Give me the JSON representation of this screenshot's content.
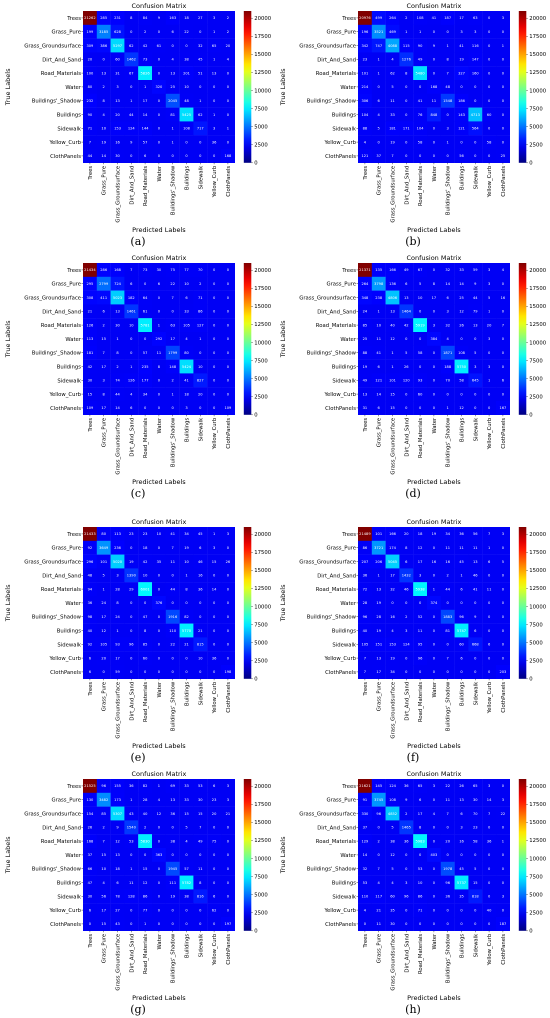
{
  "figure": {
    "colormap": "jet",
    "colorbar_ticks": [
      "0",
      "2500",
      "5000",
      "7500",
      "10000",
      "12500",
      "15000",
      "17500",
      "20000"
    ]
  },
  "chart_data": [
    {
      "panel": "(a)",
      "type": "heatmap",
      "title": "Confusion Matrix",
      "xlabel": "Predicted Labels",
      "ylabel": "True Labels",
      "labels": [
        "Trees",
        "Grass_Pure",
        "Grass_Groundsurface",
        "Dirt_And_Sand",
        "Road_Materials",
        "Water",
        "Buildings'_Shadow",
        "Buildings",
        "Sidewalk",
        "Yellow_Curb",
        "ClothPanels"
      ],
      "vmin": 0,
      "vmax": 21000,
      "matrix": [
        [
          21262,
          285,
          231,
          8,
          84,
          9,
          163,
          18,
          27,
          3,
          2
        ],
        [
          199,
          3185,
          628,
          0,
          2,
          0,
          6,
          22,
          0,
          1,
          2
        ],
        [
          309,
          386,
          5297,
          62,
          42,
          61,
          0,
          0,
          32,
          65,
          20
        ],
        [
          20,
          0,
          60,
          1462,
          73,
          0,
          4,
          38,
          45,
          1,
          4
        ],
        [
          100,
          13,
          31,
          67,
          5826,
          0,
          13,
          201,
          51,
          13,
          0
        ],
        [
          80,
          2,
          3,
          0,
          1,
          320,
          25,
          10,
          0,
          0,
          0
        ],
        [
          232,
          8,
          13,
          1,
          17,
          0,
          2045,
          48,
          1,
          0,
          0
        ],
        [
          90,
          4,
          20,
          44,
          14,
          0,
          81,
          5425,
          62,
          1,
          0
        ],
        [
          71,
          10,
          153,
          124,
          144,
          0,
          1,
          108,
          717,
          3,
          1
        ],
        [
          7,
          19,
          16,
          9,
          57,
          0,
          1,
          0,
          0,
          36,
          0
        ],
        [
          44,
          14,
          30,
          0,
          6,
          0,
          0,
          0,
          0,
          0,
          168
        ]
      ]
    },
    {
      "panel": "(b)",
      "type": "heatmap",
      "title": "Confusion Matrix",
      "xlabel": "Predicted Labels",
      "ylabel": "True Labels",
      "labels": [
        "Trees",
        "Grass_Pure",
        "Grass_Groundsurface",
        "Dirt_And_Sand",
        "Road_Materials",
        "Water",
        "Buildings'_Shadow",
        "Buildings",
        "Sidewalk",
        "Yellow_Curb",
        "ClothPanels"
      ],
      "vmin": 0,
      "vmax": 21000,
      "matrix": [
        [
          20976,
          499,
          264,
          2,
          108,
          41,
          187,
          17,
          63,
          0,
          3
        ],
        [
          196,
          3521,
          469,
          1,
          1,
          0,
          0,
          3,
          3,
          0,
          0
        ],
        [
          342,
          747,
          4088,
          115,
          90,
          9,
          1,
          41,
          116,
          0,
          1
        ],
        [
          23,
          1,
          4,
          1276,
          49,
          0,
          8,
          19,
          147,
          0,
          0
        ],
        [
          101,
          1,
          62,
          8,
          5480,
          0,
          7,
          327,
          160,
          0,
          0
        ],
        [
          214,
          0,
          5,
          0,
          0,
          168,
          48,
          0,
          0,
          0,
          0
        ],
        [
          306,
          6,
          11,
          0,
          41,
          11,
          1548,
          186,
          0,
          0,
          0
        ],
        [
          104,
          4,
          33,
          0,
          76,
          848,
          0,
          143,
          4713,
          60,
          0
        ],
        [
          88,
          5,
          181,
          171,
          104,
          0,
          3,
          121,
          564,
          0,
          0
        ],
        [
          4,
          0,
          19,
          0,
          58,
          0,
          1,
          0,
          0,
          58,
          0
        ],
        [
          121,
          37,
          7,
          0,
          0,
          0,
          0,
          56,
          0,
          0,
          25
        ]
      ]
    },
    {
      "panel": "(c)",
      "type": "heatmap",
      "title": "Confusion Matrix",
      "xlabel": "Predicted Labels",
      "ylabel": "True Labels",
      "labels": [
        "Trees",
        "Grass_Pure",
        "Grass_Groundsurface",
        "Dirt_And_Sand",
        "Road_Materials",
        "Water",
        "Buildings'_Shadow",
        "Buildings",
        "Sidewalk",
        "Yellow_Curb",
        "ClothPanels"
      ],
      "vmin": 0,
      "vmax": 21000,
      "matrix": [
        [
          21434,
          286,
          168,
          7,
          73,
          30,
          75,
          77,
          70,
          0,
          0
        ],
        [
          295,
          2799,
          724,
          6,
          0,
          6,
          22,
          10,
          2,
          0,
          0
        ],
        [
          308,
          411,
          5023,
          182,
          64,
          0,
          7,
          6,
          71,
          0,
          0
        ],
        [
          21,
          6,
          13,
          1461,
          61,
          0,
          0,
          33,
          86,
          0,
          0
        ],
        [
          126,
          2,
          30,
          10,
          5781,
          1,
          63,
          105,
          127,
          0,
          0
        ],
        [
          113,
          15,
          1,
          0,
          0,
          292,
          17,
          4,
          1,
          0,
          0
        ],
        [
          181,
          7,
          8,
          0,
          57,
          11,
          1799,
          80,
          0,
          0,
          0
        ],
        [
          42,
          17,
          2,
          1,
          235,
          8,
          148,
          5424,
          10,
          0,
          0
        ],
        [
          30,
          3,
          74,
          126,
          177,
          0,
          2,
          41,
          827,
          0,
          0
        ],
        [
          15,
          8,
          44,
          4,
          34,
          0,
          1,
          18,
          20,
          0,
          0
        ],
        [
          109,
          17,
          14,
          6,
          0,
          0,
          0,
          3,
          0,
          0,
          109
        ]
      ]
    },
    {
      "panel": "(d)",
      "type": "heatmap",
      "title": "Confusion Matrix",
      "xlabel": "Predicted Labels",
      "ylabel": "True Labels",
      "labels": [
        "Trees",
        "Grass_Pure",
        "Grass_Groundsurface",
        "Dirt_And_Sand",
        "Road_Materials",
        "Water",
        "Buildings'_Shadow",
        "Buildings",
        "Sidewalk",
        "Yellow_Curb",
        "ClothPanels"
      ],
      "vmin": 0,
      "vmax": 21000,
      "matrix": [
        [
          21371,
          135,
          166,
          49,
          67,
          0,
          32,
          33,
          59,
          3,
          4
        ],
        [
          264,
          3798,
          136,
          6,
          5,
          8,
          14,
          14,
          9,
          3,
          0
        ],
        [
          348,
          238,
          4806,
          13,
          10,
          17,
          6,
          25,
          44,
          5,
          16
        ],
        [
          24,
          1,
          13,
          1464,
          0,
          0,
          3,
          12,
          79,
          1,
          0
        ],
        [
          85,
          10,
          40,
          42,
          5919,
          3,
          32,
          26,
          13,
          20,
          7
        ],
        [
          25,
          11,
          12,
          0,
          0,
          384,
          4,
          0,
          0,
          3,
          0
        ],
        [
          88,
          41,
          1,
          5,
          58,
          0,
          1871,
          108,
          5,
          0,
          0
        ],
        [
          19,
          6,
          1,
          26,
          0,
          0,
          188,
          5750,
          3,
          3,
          0
        ],
        [
          49,
          121,
          101,
          120,
          93,
          0,
          70,
          58,
          645,
          1,
          6
        ],
        [
          13,
          14,
          15,
          0,
          60,
          0,
          0,
          0,
          0,
          0,
          0
        ],
        [
          31,
          6,
          15,
          0,
          0,
          0,
          1,
          12,
          0,
          0,
          167
        ]
      ]
    },
    {
      "panel": "(e)",
      "type": "heatmap",
      "title": "Confusion Matrix",
      "xlabel": "Predicted Labels",
      "ylabel": "True Labels",
      "labels": [
        "Trees",
        "Grass_Pure",
        "Grass_Groundsurface",
        "Dirt_And_Sand",
        "Road_Materials",
        "Water",
        "Buildings'_Shadow",
        "Buildings",
        "Sidewalk",
        "Yellow_Curb",
        "ClothPanels"
      ],
      "vmin": 0,
      "vmax": 21000,
      "matrix": [
        [
          21433,
          80,
          113,
          23,
          23,
          10,
          41,
          34,
          45,
          1,
          3
        ],
        [
          92,
          3649,
          236,
          0,
          18,
          0,
          7,
          19,
          6,
          3,
          0
        ],
        [
          296,
          101,
          5020,
          19,
          42,
          35,
          11,
          10,
          46,
          15,
          26
        ],
        [
          48,
          5,
          3,
          1390,
          10,
          0,
          0,
          1,
          16,
          0,
          0
        ],
        [
          94,
          1,
          28,
          29,
          6001,
          0,
          44,
          8,
          36,
          14,
          0
        ],
        [
          36,
          24,
          8,
          0,
          0,
          376,
          0,
          0,
          0,
          0,
          0
        ],
        [
          98,
          17,
          24,
          0,
          47,
          0,
          1916,
          82,
          0,
          0,
          0
        ],
        [
          40,
          12,
          1,
          0,
          8,
          0,
          110,
          5770,
          21,
          0,
          0
        ],
        [
          92,
          105,
          93,
          96,
          85,
          0,
          22,
          21,
          815,
          0,
          0
        ],
        [
          6,
          20,
          17,
          0,
          60,
          0,
          0,
          0,
          10,
          36,
          0
        ],
        [
          6,
          0,
          59,
          0,
          0,
          0,
          0,
          0,
          0,
          0,
          198
        ]
      ]
    },
    {
      "panel": "(f)",
      "type": "heatmap",
      "title": "Confusion Matrix",
      "xlabel": "Predicted Labels",
      "ylabel": "True Labels",
      "labels": [
        "Trees",
        "Grass_Pure",
        "Grass_Groundsurface",
        "Dirt_And_Sand",
        "Road_Materials",
        "Water",
        "Buildings'_Shadow",
        "Buildings",
        "Sidewalk",
        "Yellow_Curb",
        "ClothPanels"
      ],
      "vmin": 0,
      "vmax": 21000,
      "matrix": [
        [
          21489,
          101,
          166,
          20,
          18,
          19,
          34,
          36,
          56,
          7,
          3
        ],
        [
          86,
          3721,
          174,
          8,
          12,
          0,
          11,
          11,
          11,
          1,
          0
        ],
        [
          207,
          206,
          5045,
          6,
          17,
          16,
          16,
          45,
          13,
          6,
          5
        ],
        [
          36,
          1,
          17,
          1432,
          3,
          0,
          2,
          1,
          46,
          0,
          0
        ],
        [
          72,
          13,
          32,
          46,
          5938,
          1,
          44,
          6,
          41,
          11,
          0
        ],
        [
          28,
          19,
          0,
          0,
          0,
          374,
          0,
          0,
          0,
          0,
          0
        ],
        [
          96,
          28,
          16,
          2,
          52,
          0,
          1883,
          96,
          9,
          0,
          0
        ],
        [
          40,
          19,
          4,
          3,
          11,
          0,
          81,
          5747,
          6,
          0,
          0
        ],
        [
          105,
          151,
          153,
          124,
          95,
          0,
          0,
          60,
          668,
          6,
          0
        ],
        [
          7,
          13,
          19,
          0,
          96,
          0,
          7,
          6,
          0,
          0,
          0
        ],
        [
          7,
          17,
          34,
          0,
          0,
          0,
          0,
          0,
          0,
          0,
          203
        ]
      ]
    },
    {
      "panel": "(g)",
      "type": "heatmap",
      "title": "Confusion Matrix",
      "xlabel": "Predicted Labels",
      "ylabel": "True Labels",
      "labels": [
        "Trees",
        "Grass_Pure",
        "Grass_Groundsurface",
        "Dirt_And_Sand",
        "Road_Materials",
        "Water",
        "Buildings'_Shadow",
        "Buildings",
        "Sidewalk",
        "Yellow_Curb",
        "ClothPanels"
      ],
      "vmin": 0,
      "vmax": 21000,
      "matrix": [
        [
          21525,
          96,
          155,
          36,
          82,
          1,
          69,
          33,
          53,
          6,
          3
        ],
        [
          130,
          3482,
          173,
          1,
          28,
          4,
          13,
          33,
          30,
          23,
          3
        ],
        [
          154,
          85,
          5307,
          43,
          40,
          12,
          36,
          15,
          15,
          20,
          21
        ],
        [
          26,
          2,
          9,
          1540,
          2,
          0,
          0,
          5,
          7,
          0,
          0
        ],
        [
          168,
          7,
          12,
          53,
          5830,
          0,
          38,
          4,
          49,
          75,
          0
        ],
        [
          37,
          15,
          13,
          0,
          0,
          363,
          0,
          0,
          0,
          0,
          0
        ],
        [
          66,
          10,
          18,
          1,
          15,
          0,
          1945,
          57,
          11,
          0,
          0
        ],
        [
          47,
          4,
          6,
          11,
          12,
          0,
          111,
          5782,
          8,
          0,
          0
        ],
        [
          30,
          56,
          78,
          128,
          86,
          0,
          19,
          38,
          816,
          6,
          0
        ],
        [
          6,
          17,
          27,
          0,
          77,
          0,
          0,
          0,
          0,
          62,
          0
        ],
        [
          0,
          15,
          43,
          0,
          1,
          0,
          0,
          0,
          0,
          0,
          197
        ]
      ]
    },
    {
      "panel": "(h)",
      "type": "heatmap",
      "title": "Confusion Matrix",
      "xlabel": "Predicted Labels",
      "ylabel": "True Labels",
      "labels": [
        "Trees",
        "Grass_Pure",
        "Grass_Groundsurface",
        "Dirt_And_Sand",
        "Road_Materials",
        "Water",
        "Buildings'_Shadow",
        "Buildings",
        "Sidewalk",
        "Yellow_Curb",
        "ClothPanels"
      ],
      "vmin": 0,
      "vmax": 21000,
      "matrix": [
        [
          21621,
          145,
          124,
          36,
          65,
          3,
          22,
          26,
          65,
          3,
          0
        ],
        [
          91,
          3745,
          108,
          9,
          6,
          0,
          11,
          13,
          30,
          14,
          3
        ],
        [
          330,
          96,
          4852,
          2,
          17,
          4,
          7,
          6,
          70,
          7,
          22
        ],
        [
          37,
          0,
          5,
          1465,
          8,
          0,
          0,
          3,
          23,
          0,
          0
        ],
        [
          129,
          2,
          38,
          36,
          5983,
          0,
          20,
          16,
          58,
          36,
          1
        ],
        [
          14,
          0,
          12,
          0,
          0,
          403,
          0,
          0,
          0,
          0,
          0
        ],
        [
          32,
          7,
          5,
          0,
          53,
          0,
          1978,
          45,
          5,
          0,
          0
        ],
        [
          53,
          4,
          4,
          3,
          10,
          0,
          96,
          5737,
          15,
          0,
          0
        ],
        [
          110,
          117,
          60,
          96,
          86,
          0,
          36,
          35,
          818,
          0,
          3
        ],
        [
          4,
          21,
          35,
          0,
          71,
          0,
          0,
          0,
          0,
          40,
          0
        ],
        [
          0,
          11,
          30,
          0,
          0,
          0,
          0,
          0,
          0,
          0,
          187
        ]
      ]
    }
  ]
}
